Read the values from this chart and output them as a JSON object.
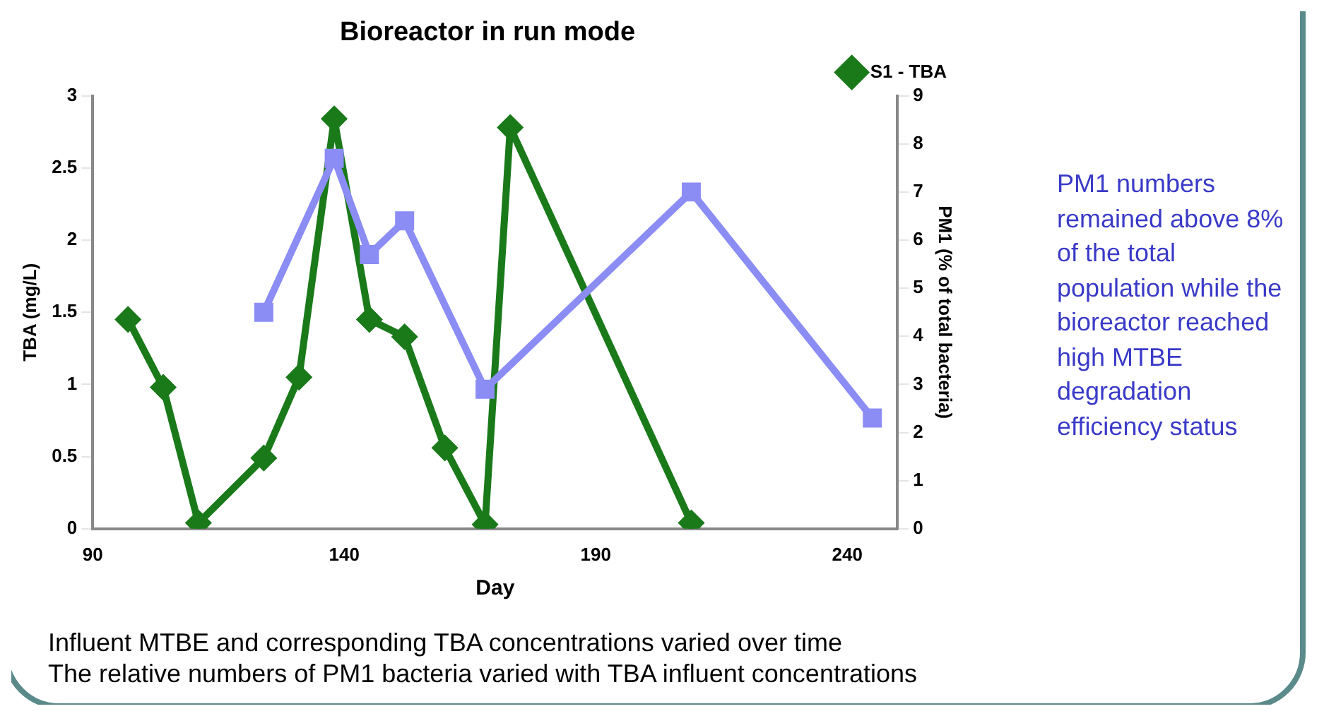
{
  "chart_data": {
    "type": "line",
    "title": "Bioreactor in run mode",
    "xlabel": "Day",
    "ylabel": "TBA (mg/L)",
    "y2label": "PM1 (% of total bacteria)",
    "xlim": [
      90,
      250
    ],
    "xticks": [
      90,
      140,
      190,
      240
    ],
    "ylim": [
      0,
      3
    ],
    "yticks": [
      0,
      0.5,
      1,
      1.5,
      2,
      2.5,
      3
    ],
    "y2lim": [
      0,
      9
    ],
    "y2ticks": [
      0,
      1,
      2,
      3,
      4,
      5,
      6,
      7,
      8,
      9
    ],
    "grid": false,
    "legend": "top right",
    "line_style": "solid",
    "series": [
      {
        "name": "S1 - TBA",
        "color": "#1a7a1a",
        "marker": "diamond",
        "x": [
          97,
          104,
          111,
          124,
          131,
          138,
          145,
          152,
          160,
          168,
          173,
          209
        ],
        "values": [
          1.45,
          0.98,
          0.04,
          0.49,
          1.05,
          2.84,
          1.45,
          1.33,
          0.56,
          0.03,
          2.78,
          0.04
        ]
      },
      {
        "color": "#8c8cf5",
        "marker": "square",
        "axis": "y2",
        "x": [
          124,
          138,
          145,
          152,
          168,
          209,
          245
        ],
        "values": [
          4.5,
          7.7,
          5.7,
          6.4,
          2.9,
          7.0,
          2.3
        ]
      }
    ],
    "annotations": [
      "PM1 numbers remained above 8% of the total population while the bioreactor reached high MTBE degradation efficiency status",
      "Influent MTBE and corresponding TBA concentrations varied over time",
      "The relative numbers of PM1 bacteria varied with TBA influent concentrations"
    ]
  }
}
